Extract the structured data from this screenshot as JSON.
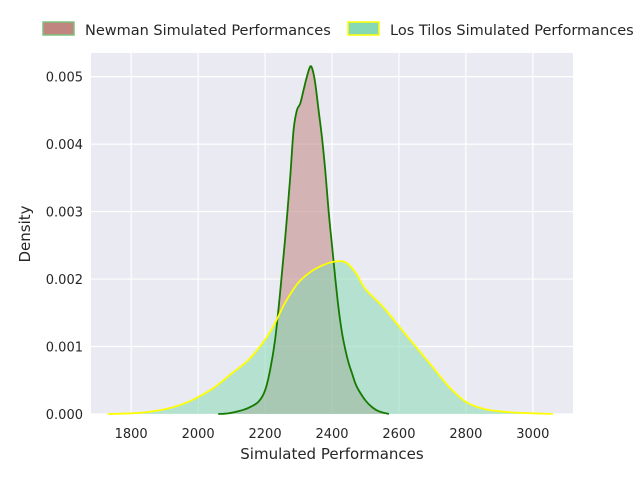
{
  "chart_data": {
    "type": "area",
    "title": "",
    "xlabel": "Simulated Performances",
    "ylabel": "Density",
    "xlim": [
      1680,
      3120
    ],
    "ylim": [
      0,
      0.00535
    ],
    "x_ticks": [
      1800,
      2000,
      2200,
      2400,
      2600,
      2800,
      3000
    ],
    "y_ticks": [
      0.0,
      0.001,
      0.002,
      0.003,
      0.004,
      0.005
    ],
    "y_tick_labels": [
      "0.000",
      "0.001",
      "0.002",
      "0.003",
      "0.004",
      "0.005"
    ],
    "grid": true,
    "legend_placement": "top",
    "series": [
      {
        "name": "Newman Simulated Performances",
        "fill": "#c0857f",
        "line": "#157a00",
        "points": [
          [
            2060,
            0
          ],
          [
            2090,
            1e-05
          ],
          [
            2120,
            4e-05
          ],
          [
            2150,
            9e-05
          ],
          [
            2180,
            0.00018
          ],
          [
            2200,
            0.00035
          ],
          [
            2215,
            0.00065
          ],
          [
            2230,
            0.0011
          ],
          [
            2245,
            0.0018
          ],
          [
            2260,
            0.0026
          ],
          [
            2275,
            0.0035
          ],
          [
            2285,
            0.0042
          ],
          [
            2295,
            0.0045
          ],
          [
            2305,
            0.0046
          ],
          [
            2315,
            0.0048
          ],
          [
            2325,
            0.005
          ],
          [
            2335,
            0.00515
          ],
          [
            2342,
            0.0051
          ],
          [
            2350,
            0.0049
          ],
          [
            2360,
            0.0045
          ],
          [
            2370,
            0.0041
          ],
          [
            2380,
            0.0036
          ],
          [
            2390,
            0.003
          ],
          [
            2400,
            0.0025
          ],
          [
            2410,
            0.002
          ],
          [
            2420,
            0.00155
          ],
          [
            2430,
            0.0012
          ],
          [
            2440,
            0.00095
          ],
          [
            2450,
            0.00075
          ],
          [
            2460,
            0.0006
          ],
          [
            2470,
            0.00045
          ],
          [
            2480,
            0.00035
          ],
          [
            2500,
            0.0002
          ],
          [
            2520,
            0.0001
          ],
          [
            2540,
            4e-05
          ],
          [
            2570,
            0
          ]
        ]
      },
      {
        "name": "Los Tilos Simulated Performances",
        "fill": "#87d8b4",
        "line": "#ffff00",
        "points": [
          [
            1730,
            0
          ],
          [
            1800,
            1e-05
          ],
          [
            1850,
            3e-05
          ],
          [
            1900,
            7e-05
          ],
          [
            1950,
            0.00014
          ],
          [
            2000,
            0.00025
          ],
          [
            2050,
            0.0004
          ],
          [
            2100,
            0.0006
          ],
          [
            2150,
            0.0008
          ],
          [
            2200,
            0.0011
          ],
          [
            2230,
            0.00135
          ],
          [
            2260,
            0.00165
          ],
          [
            2300,
            0.00195
          ],
          [
            2340,
            0.00212
          ],
          [
            2380,
            0.00222
          ],
          [
            2410,
            0.00226
          ],
          [
            2440,
            0.00225
          ],
          [
            2470,
            0.0021
          ],
          [
            2500,
            0.00185
          ],
          [
            2550,
            0.0016
          ],
          [
            2600,
            0.0013
          ],
          [
            2650,
            0.001
          ],
          [
            2700,
            0.0007
          ],
          [
            2750,
            0.0004
          ],
          [
            2800,
            0.00018
          ],
          [
            2850,
            8e-05
          ],
          [
            2900,
            4e-05
          ],
          [
            2950,
            2e-05
          ],
          [
            3000,
            1e-05
          ],
          [
            3060,
            0
          ]
        ]
      }
    ]
  }
}
